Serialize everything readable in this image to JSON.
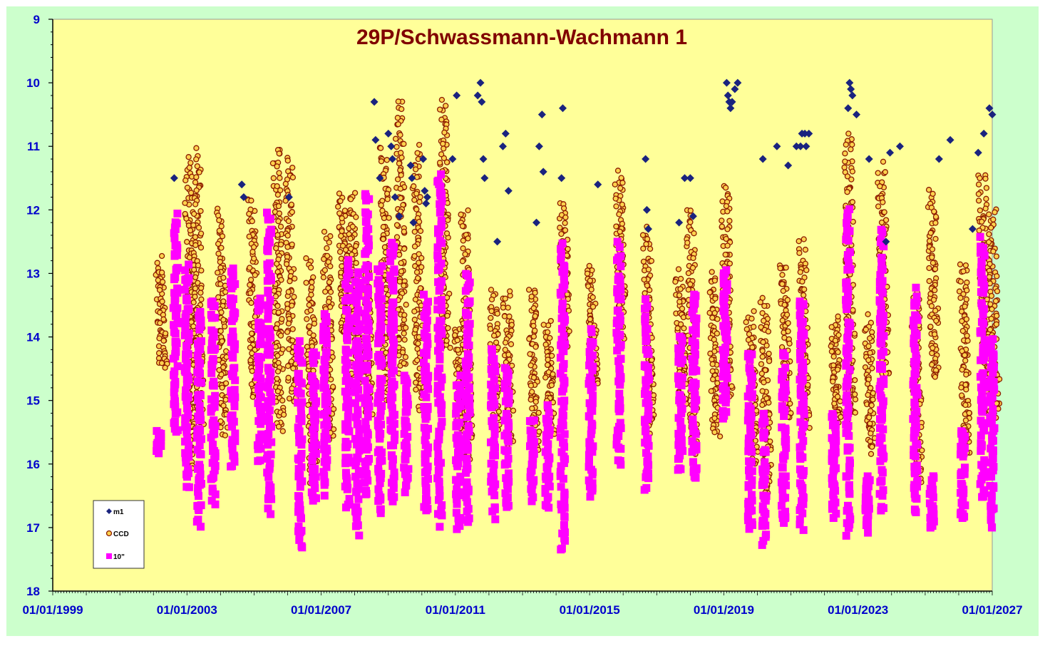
{
  "colors": {
    "outer_background": "#ccffcc",
    "plot_background": "#ffff99",
    "axis_labels": "#0000cc",
    "title": "#800000",
    "m1": "#1a237e",
    "ccd": "#8b1a00",
    "ten_inch": "#ff00ff"
  },
  "chart_data": {
    "type": "scatter",
    "title": "29P/Schwassmann-Wachmann 1",
    "xlabel": "",
    "ylabel": "",
    "x_axis_type": "date",
    "xlim": [
      "1999-01-01",
      "2027-01-01"
    ],
    "x_tick_labels": [
      "01/01/1999",
      "01/01/2003",
      "01/01/2007",
      "01/01/2011",
      "01/01/2015",
      "01/01/2019",
      "01/01/2023",
      "01/01/2027"
    ],
    "ylim": [
      9,
      18
    ],
    "y_reversed": true,
    "y_tick_labels": [
      "9",
      "10",
      "11",
      "12",
      "13",
      "14",
      "15",
      "16",
      "17",
      "18"
    ],
    "grid": false,
    "legend": {
      "placement": "bottom-left",
      "entries": [
        {
          "label": "m1",
          "marker": "diamond",
          "series": "m1"
        },
        {
          "label": "CCD",
          "marker": "open-circle",
          "series": "ccd"
        },
        {
          "label": "10\"",
          "marker": "square",
          "series": "ten_inch"
        }
      ]
    },
    "series": [
      {
        "key": "m1",
        "name": "m1",
        "marker": "diamond",
        "points": [
          [
            "2002-08-15",
            11.5
          ],
          [
            "2004-08-20",
            11.6
          ],
          [
            "2004-09-10",
            11.8
          ],
          [
            "2006-01-15",
            11.8
          ],
          [
            "2008-08-01",
            10.3
          ],
          [
            "2008-08-15",
            10.9
          ],
          [
            "2008-10-01",
            11.5
          ],
          [
            "2009-01-01",
            10.8
          ],
          [
            "2009-02-01",
            11.0
          ],
          [
            "2009-02-15",
            11.2
          ],
          [
            "2009-03-15",
            11.8
          ],
          [
            "2009-05-01",
            12.1
          ],
          [
            "2009-09-01",
            11.3
          ],
          [
            "2009-09-15",
            11.5
          ],
          [
            "2009-10-01",
            12.2
          ],
          [
            "2010-01-15",
            11.2
          ],
          [
            "2010-02-01",
            11.7
          ],
          [
            "2010-02-15",
            11.9
          ],
          [
            "2010-03-01",
            11.8
          ],
          [
            "2010-12-01",
            11.2
          ],
          [
            "2011-01-15",
            10.2
          ],
          [
            "2011-09-01",
            10.2
          ],
          [
            "2011-10-01",
            10.0
          ],
          [
            "2011-10-15",
            10.3
          ],
          [
            "2011-11-01",
            11.2
          ],
          [
            "2011-11-15",
            11.5
          ],
          [
            "2012-04-01",
            12.5
          ],
          [
            "2012-06-01",
            11.0
          ],
          [
            "2012-07-01",
            10.8
          ],
          [
            "2012-08-01",
            11.7
          ],
          [
            "2013-06-01",
            12.2
          ],
          [
            "2013-07-01",
            11.0
          ],
          [
            "2013-08-01",
            10.5
          ],
          [
            "2013-08-15",
            11.4
          ],
          [
            "2014-03-01",
            11.5
          ],
          [
            "2014-03-15",
            10.4
          ],
          [
            "2015-04-01",
            11.6
          ],
          [
            "2016-09-01",
            11.2
          ],
          [
            "2016-09-15",
            12.0
          ],
          [
            "2016-10-01",
            12.3
          ],
          [
            "2017-09-01",
            12.2
          ],
          [
            "2017-11-01",
            11.5
          ],
          [
            "2018-01-01",
            11.5
          ],
          [
            "2018-02-01",
            12.1
          ],
          [
            "2019-02-01",
            10.0
          ],
          [
            "2019-02-15",
            10.2
          ],
          [
            "2019-03-01",
            10.3
          ],
          [
            "2019-03-15",
            10.4
          ],
          [
            "2019-04-01",
            10.3
          ],
          [
            "2019-05-01",
            10.1
          ],
          [
            "2019-06-01",
            10.0
          ],
          [
            "2020-03-01",
            11.2
          ],
          [
            "2020-08-01",
            11.0
          ],
          [
            "2020-12-01",
            11.3
          ],
          [
            "2021-03-01",
            11.0
          ],
          [
            "2021-04-15",
            11.0
          ],
          [
            "2021-05-01",
            10.8
          ],
          [
            "2021-06-01",
            10.8
          ],
          [
            "2021-06-15",
            11.0
          ],
          [
            "2021-07-15",
            10.8
          ],
          [
            "2022-09-15",
            10.4
          ],
          [
            "2022-10-01",
            10.0
          ],
          [
            "2022-10-15",
            10.1
          ],
          [
            "2022-11-01",
            10.2
          ],
          [
            "2022-12-15",
            10.5
          ],
          [
            "2023-05-01",
            11.2
          ],
          [
            "2023-11-01",
            12.5
          ],
          [
            "2023-12-15",
            11.1
          ],
          [
            "2024-04-01",
            11.0
          ],
          [
            "2025-06-01",
            11.2
          ],
          [
            "2025-10-01",
            10.9
          ],
          [
            "2026-06-01",
            12.3
          ],
          [
            "2026-08-01",
            11.1
          ],
          [
            "2026-10-01",
            10.8
          ],
          [
            "2026-12-01",
            10.4
          ],
          [
            "2027-01-01",
            10.5
          ]
        ]
      },
      {
        "key": "ccd",
        "name": "CCD",
        "marker": "open-circle",
        "clusters": [
          [
            "2002-03-10",
            12.8,
            14.5
          ],
          [
            "2003-01-15",
            11.2,
            16.0
          ],
          [
            "2003-04-15",
            11.1,
            15.5
          ],
          [
            "2004-01-01",
            12.0,
            15.5
          ],
          [
            "2004-12-01",
            11.8,
            15.0
          ],
          [
            "2005-09-01",
            11.0,
            15.5
          ],
          [
            "2006-01-15",
            11.2,
            15.0
          ],
          [
            "2006-09-01",
            12.8,
            16.3
          ],
          [
            "2007-03-01",
            12.4,
            15.6
          ],
          [
            "2007-08-15",
            11.8,
            14.0
          ],
          [
            "2007-12-01",
            11.7,
            14.8
          ],
          [
            "2008-05-01",
            12.9,
            15.2
          ],
          [
            "2008-11-15",
            11.0,
            15.0
          ],
          [
            "2009-05-01",
            10.3,
            14.5
          ],
          [
            "2009-11-01",
            11.0,
            15.1
          ],
          [
            "2010-08-15",
            10.3,
            14.2
          ],
          [
            "2011-02-01",
            13.8,
            15.5
          ],
          [
            "2011-04-15",
            12.0,
            15.9
          ],
          [
            "2012-02-15",
            13.3,
            15.5
          ],
          [
            "2012-07-15",
            13.3,
            15.7
          ],
          [
            "2013-04-15",
            13.2,
            15.8
          ],
          [
            "2013-10-01",
            13.8,
            15.5
          ],
          [
            "2014-03-15",
            11.9,
            14.2
          ],
          [
            "2015-01-15",
            12.9,
            14.8
          ],
          [
            "2015-11-15",
            11.4,
            14.0
          ],
          [
            "2016-09-15",
            12.3,
            15.5
          ],
          [
            "2017-09-01",
            13.0,
            15.0
          ],
          [
            "2018-01-01",
            12.0,
            15.8
          ],
          [
            "2018-09-01",
            13.0,
            15.5
          ],
          [
            "2019-01-15",
            11.6,
            15.0
          ],
          [
            "2019-10-15",
            13.6,
            16.0
          ],
          [
            "2020-03-15",
            13.4,
            16.5
          ],
          [
            "2020-10-15",
            12.8,
            15.3
          ],
          [
            "2021-05-01",
            12.5,
            15.5
          ],
          [
            "2022-04-15",
            13.7,
            15.3
          ],
          [
            "2022-09-15",
            10.8,
            15.3
          ],
          [
            "2023-04-15",
            13.7,
            15.8
          ],
          [
            "2023-09-15",
            11.3,
            14.6
          ],
          [
            "2024-09-15",
            13.3,
            16.3
          ],
          [
            "2025-03-15",
            11.7,
            14.7
          ],
          [
            "2026-02-15",
            12.8,
            15.8
          ],
          [
            "2026-09-15",
            11.4,
            15.2
          ],
          [
            "2027-01-01",
            12.0,
            15.2
          ]
        ]
      },
      {
        "key": "ten_inch",
        "name": "10\"",
        "marker": "square",
        "clusters": [
          [
            "2002-03-01",
            15.5,
            15.8
          ],
          [
            "2002-09-01",
            12.1,
            15.5
          ],
          [
            "2003-01-01",
            12.9,
            16.4
          ],
          [
            "2003-05-15",
            13.6,
            17.0
          ],
          [
            "2003-10-15",
            13.4,
            16.6
          ],
          [
            "2004-05-15",
            12.9,
            16.1
          ],
          [
            "2005-03-01",
            13.4,
            15.9
          ],
          [
            "2005-06-15",
            12.0,
            16.7
          ],
          [
            "2006-05-15",
            14.1,
            17.3
          ],
          [
            "2006-10-15",
            14.2,
            16.6
          ],
          [
            "2007-02-15",
            13.6,
            16.4
          ],
          [
            "2007-10-15",
            12.8,
            16.7
          ],
          [
            "2008-02-01",
            13.0,
            17.1
          ],
          [
            "2008-05-15",
            11.7,
            16.5
          ],
          [
            "2008-10-01",
            12.9,
            16.8
          ],
          [
            "2009-02-15",
            12.5,
            16.6
          ],
          [
            "2009-07-15",
            14.6,
            16.4
          ],
          [
            "2010-02-15",
            13.4,
            16.8
          ],
          [
            "2010-07-15",
            11.4,
            16.9
          ],
          [
            "2011-02-01",
            14.7,
            17.0
          ],
          [
            "2011-05-15",
            13.0,
            16.9
          ],
          [
            "2012-02-15",
            14.2,
            16.8
          ],
          [
            "2012-07-15",
            14.5,
            16.7
          ],
          [
            "2013-04-15",
            15.3,
            16.5
          ],
          [
            "2013-10-01",
            15.1,
            16.7
          ],
          [
            "2014-03-15",
            12.6,
            17.3
          ],
          [
            "2015-01-15",
            13.9,
            16.5
          ],
          [
            "2015-11-15",
            12.6,
            16.0
          ],
          [
            "2016-09-15",
            13.5,
            16.4
          ],
          [
            "2017-09-15",
            14.0,
            16.1
          ],
          [
            "2018-02-15",
            13.3,
            16.3
          ],
          [
            "2019-01-15",
            12.9,
            15.3
          ],
          [
            "2019-10-15",
            14.2,
            17.1
          ],
          [
            "2020-03-15",
            15.2,
            17.2
          ],
          [
            "2020-10-15",
            14.3,
            16.9
          ],
          [
            "2021-05-01",
            13.4,
            17.0
          ],
          [
            "2022-04-15",
            15.2,
            16.8
          ],
          [
            "2022-09-15",
            12.0,
            17.1
          ],
          [
            "2023-04-15",
            16.2,
            17.0
          ],
          [
            "2023-09-15",
            12.3,
            16.7
          ],
          [
            "2024-09-15",
            13.3,
            16.8
          ],
          [
            "2025-03-15",
            16.2,
            17.0
          ],
          [
            "2026-02-15",
            15.4,
            16.9
          ],
          [
            "2026-09-15",
            12.5,
            16.6
          ],
          [
            "2027-01-01",
            14.0,
            17.0
          ]
        ]
      }
    ]
  }
}
